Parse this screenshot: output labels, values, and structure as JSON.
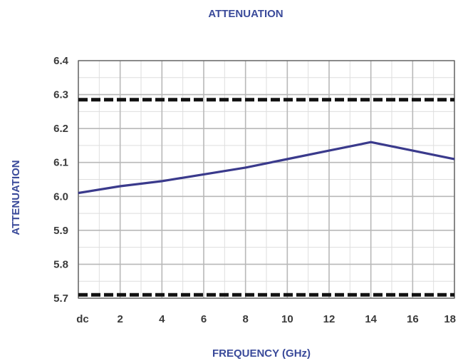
{
  "chart_data": {
    "type": "line",
    "title": "ATTENUATION",
    "xlabel": "FREQUENCY (GHz)",
    "ylabel": "ATTENUATION",
    "x_ticks": [
      {
        "value": 0,
        "label": "dc"
      },
      {
        "value": 2,
        "label": "2"
      },
      {
        "value": 4,
        "label": "4"
      },
      {
        "value": 6,
        "label": "6"
      },
      {
        "value": 8,
        "label": "8"
      },
      {
        "value": 10,
        "label": "10"
      },
      {
        "value": 12,
        "label": "12"
      },
      {
        "value": 14,
        "label": "14"
      },
      {
        "value": 16,
        "label": "16"
      },
      {
        "value": 18,
        "label": "18"
      }
    ],
    "y_ticks": [
      {
        "value": 5.7,
        "label": "5.7"
      },
      {
        "value": 5.8,
        "label": "5.8"
      },
      {
        "value": 5.9,
        "label": "5.9"
      },
      {
        "value": 6.0,
        "label": "6.0"
      },
      {
        "value": 6.1,
        "label": "6.1"
      },
      {
        "value": 6.2,
        "label": "6.2"
      },
      {
        "value": 6.3,
        "label": "6.3"
      },
      {
        "value": 6.4,
        "label": "6.4"
      }
    ],
    "xlim": [
      0,
      18
    ],
    "ylim": [
      5.7,
      6.4
    ],
    "grid": true,
    "series": [
      {
        "x": [
          0,
          2,
          4,
          6,
          8,
          10,
          12,
          14,
          16,
          18
        ],
        "y": [
          6.01,
          6.03,
          6.045,
          6.065,
          6.085,
          6.11,
          6.135,
          6.16,
          6.135,
          6.11
        ],
        "color": "#3a3a8c",
        "style": "solid"
      }
    ],
    "limit_lines": [
      {
        "y": 6.285,
        "color": "#111111",
        "style": "dashed"
      },
      {
        "y": 5.71,
        "color": "#111111",
        "style": "dashed"
      }
    ],
    "colors": {
      "title": "#3a4a9a",
      "axis_label": "#3a4a9a",
      "tick_label": "#3a3a3a",
      "grid_major": "#b8b8b8",
      "grid_minor": "#dedede",
      "frame": "#555555"
    }
  }
}
